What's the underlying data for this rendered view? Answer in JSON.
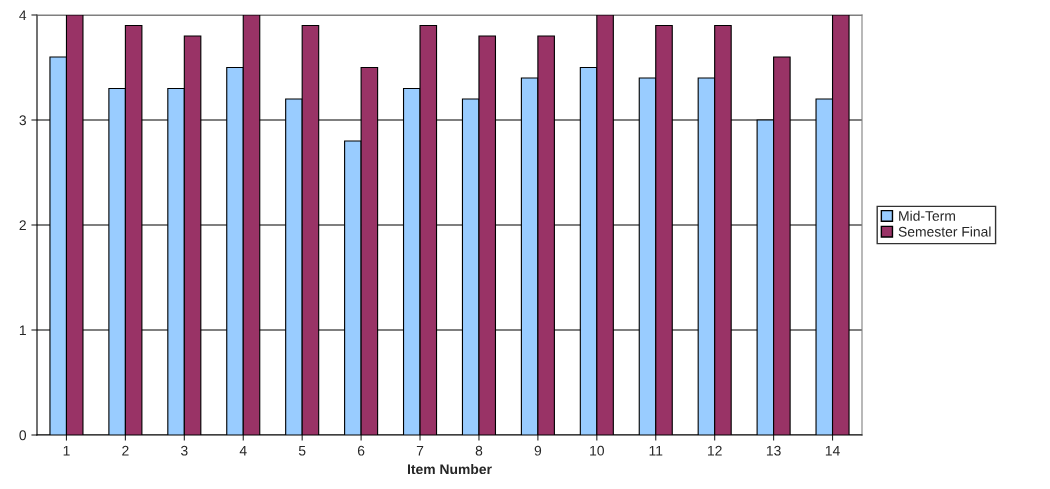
{
  "chart_data": {
    "type": "bar",
    "xlabel": "Item Number",
    "categories": [
      "1",
      "2",
      "3",
      "4",
      "5",
      "6",
      "7",
      "8",
      "9",
      "10",
      "11",
      "12",
      "13",
      "14"
    ],
    "series": [
      {
        "name": "Mid-Term",
        "color": "#99ccff",
        "values": [
          3.6,
          3.3,
          3.3,
          3.5,
          3.2,
          2.8,
          3.3,
          3.2,
          3.4,
          3.5,
          3.4,
          3.4,
          3.0,
          3.2
        ]
      },
      {
        "name": "Semester Final",
        "color": "#993366",
        "values": [
          4.0,
          3.9,
          3.8,
          4.0,
          3.9,
          3.5,
          3.9,
          3.8,
          3.8,
          4.0,
          3.9,
          3.9,
          3.6,
          4.0
        ]
      }
    ],
    "ylim": [
      0,
      4
    ],
    "yticks": [
      0,
      1,
      2,
      3,
      4
    ],
    "grid": "y",
    "legend": "right"
  }
}
